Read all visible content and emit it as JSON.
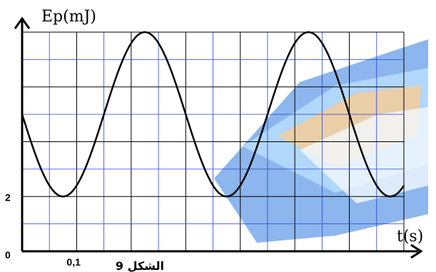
{
  "chart_data": {
    "type": "line",
    "title": "",
    "ylabel": "Ep(mJ)",
    "xlabel": "t(s)",
    "origin_label": "0",
    "x_tick_label": "0,1",
    "x_tick_value": 0.1,
    "y_tick_label": "2",
    "y_tick_value": 2,
    "xlim": [
      0,
      0.7
    ],
    "ylim": [
      0,
      8
    ],
    "grid": true,
    "caption": "الشكل 9",
    "series": [
      {
        "x": [
          0,
          0.025,
          0.05,
          0.075,
          0.1,
          0.125,
          0.15,
          0.175,
          0.2,
          0.225,
          0.25,
          0.275,
          0.3,
          0.325,
          0.35,
          0.375,
          0.4,
          0.425,
          0.45,
          0.475,
          0.5,
          0.525,
          0.55,
          0.575,
          0.6,
          0.625,
          0.65,
          0.675,
          0.7
        ],
        "values": [
          5,
          3.5,
          2.4,
          2,
          2.4,
          3.5,
          5,
          6.5,
          7.6,
          8,
          7.6,
          6.5,
          5,
          3.5,
          2.4,
          2,
          2.4,
          3.5,
          5,
          6.5,
          7.6,
          8,
          7.6,
          6.5,
          5,
          3.5,
          2.4,
          2,
          2.4
        ]
      }
    ]
  },
  "colors": {
    "grid_blue": "#2a3fd6",
    "grid_black": "#000000",
    "curve": "#000000",
    "watermark_blue": "#2f7be0",
    "watermark_orange": "#f3a33c"
  }
}
